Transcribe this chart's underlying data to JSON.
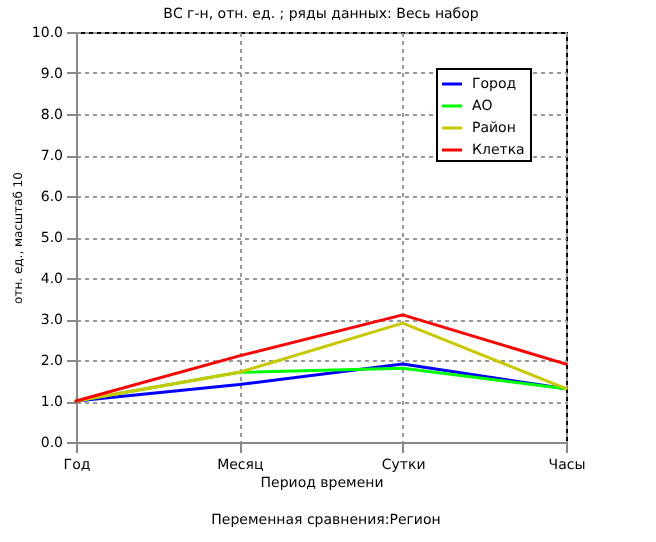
{
  "chart_data": {
    "type": "line",
    "title": "ВС г-н, отн. ед. ; ряды данных: Весь набор",
    "xlabel": "Период времени",
    "ylabel": "отн. ед., масштаб 10",
    "annotations": [
      "Переменная сравнения:Регион"
    ],
    "categories": [
      "Год",
      "Месяц",
      "Сутки",
      "Часы"
    ],
    "series": [
      {
        "name": "Город",
        "color": "#0000ff",
        "values": [
          1.0,
          1.4,
          1.9,
          1.3
        ]
      },
      {
        "name": "АО",
        "color": "#00ff00",
        "values": [
          1.0,
          1.7,
          1.8,
          1.3
        ]
      },
      {
        "name": "Район",
        "color": "#c8c800",
        "values": [
          1.0,
          1.7,
          2.9,
          1.3
        ]
      },
      {
        "name": "Клетка",
        "color": "#ff0000",
        "values": [
          1.0,
          2.1,
          3.1,
          1.9
        ]
      }
    ],
    "ylim": [
      0,
      10
    ],
    "yticks": [
      {
        "value": 0,
        "label": "0.0"
      },
      {
        "value": 1,
        "label": "1.0"
      },
      {
        "value": 2,
        "label": "2.0"
      },
      {
        "value": 3,
        "label": "3.0"
      },
      {
        "value": 4,
        "label": "4.0"
      },
      {
        "value": 5,
        "label": "5.0"
      },
      {
        "value": 6,
        "label": "6.0"
      },
      {
        "value": 7,
        "label": "7.0"
      },
      {
        "value": 8,
        "label": "8.0"
      },
      {
        "value": 9,
        "label": "9.0"
      },
      {
        "value": 10,
        "label": "10.0"
      }
    ],
    "grid": true,
    "legend": "top right",
    "marker": "none",
    "line_style": "solid"
  }
}
